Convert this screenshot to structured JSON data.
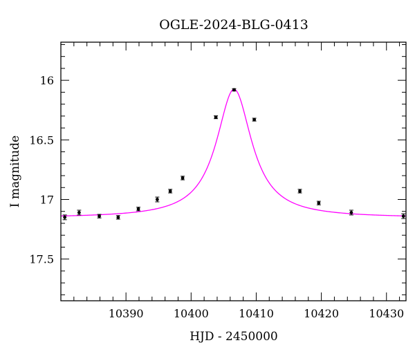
{
  "chart_data": {
    "type": "scatter",
    "title": "OGLE-2024-BLG-0413",
    "xlabel": "HJD - 2450000",
    "ylabel": "I magnitude",
    "xlim": [
      10380,
      10433
    ],
    "ylim": [
      17.85,
      15.68
    ],
    "y_inverted": true,
    "x_ticks": [
      10390,
      10400,
      10410,
      10420,
      10430
    ],
    "x_tick_labels": [
      "10390",
      "10400",
      "10410",
      "10420",
      "10430"
    ],
    "x_minor_step": 2,
    "y_ticks": [
      16.0,
      16.5,
      17.0,
      17.5
    ],
    "y_tick_labels": [
      "16",
      "16.5",
      "17",
      "17.5"
    ],
    "y_minor_step": 0.1,
    "grid": false,
    "colors": {
      "points": "#000000",
      "model": "#ff00ff",
      "axes": "#000000"
    },
    "series": [
      {
        "kind": "points_with_errorbars",
        "x": [
          10380.6,
          10382.8,
          10385.9,
          10388.8,
          10391.9,
          10394.8,
          10396.8,
          10398.7,
          10403.8,
          10406.6,
          10409.7,
          10416.7,
          10419.6,
          10424.6,
          10432.6
        ],
        "y": [
          17.15,
          17.11,
          17.14,
          17.15,
          17.08,
          17.0,
          16.93,
          16.82,
          16.31,
          16.08,
          16.33,
          16.93,
          17.03,
          17.11,
          17.14
        ],
        "yerr": [
          0.02,
          0.02,
          0.015,
          0.015,
          0.015,
          0.02,
          0.015,
          0.015,
          0.012,
          0.01,
          0.012,
          0.015,
          0.015,
          0.02,
          0.02
        ]
      },
      {
        "kind": "model_curve",
        "model": {
          "baseline_mag": 17.155,
          "peak_time": 10406.6,
          "peak_mag": 16.075,
          "half_width": 3.3
        }
      }
    ]
  }
}
